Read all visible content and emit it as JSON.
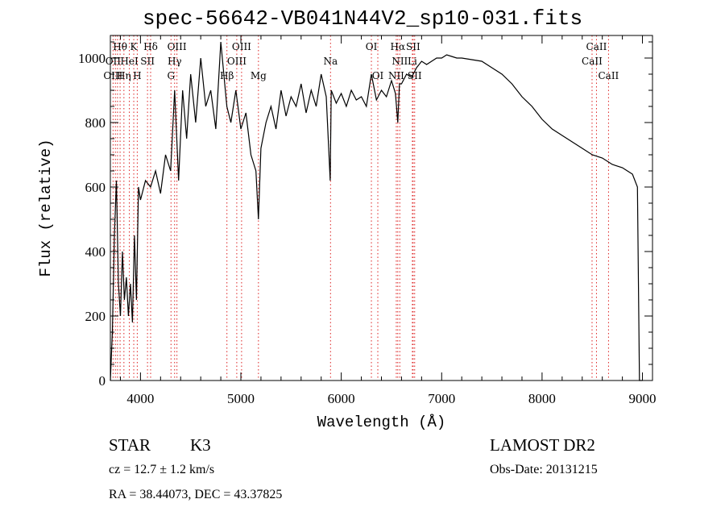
{
  "chart_data": {
    "type": "line",
    "title": "spec-56642-VB041N44V2_sp10-031.fits",
    "xlabel": "Wavelength (Å)",
    "ylabel": "Flux (relative)",
    "xlim": [
      3700,
      9100
    ],
    "ylim": [
      0,
      1070
    ],
    "xticks": [
      4000,
      5000,
      6000,
      7000,
      8000,
      9000
    ],
    "yticks": [
      0,
      200,
      400,
      600,
      800,
      1000
    ],
    "grid": false,
    "series": [
      {
        "x": [
          3700,
          3720,
          3740,
          3760,
          3780,
          3800,
          3820,
          3840,
          3860,
          3880,
          3900,
          3920,
          3940,
          3960,
          3980,
          4000,
          4050,
          4100,
          4150,
          4200,
          4250,
          4300,
          4340,
          4380,
          4420,
          4460,
          4500,
          4550,
          4600,
          4650,
          4700,
          4750,
          4800,
          4860,
          4900,
          4950,
          5000,
          5050,
          5100,
          5150,
          5175,
          5200,
          5250,
          5300,
          5350,
          5400,
          5450,
          5500,
          5550,
          5600,
          5650,
          5700,
          5750,
          5800,
          5850,
          5890,
          5900,
          5950,
          6000,
          6050,
          6100,
          6150,
          6200,
          6250,
          6300,
          6350,
          6400,
          6450,
          6500,
          6540,
          6563,
          6580,
          6600,
          6650,
          6700,
          6750,
          6800,
          6850,
          6900,
          6950,
          7000,
          7050,
          7100,
          7150,
          7200,
          7300,
          7400,
          7500,
          7600,
          7700,
          7800,
          7900,
          8000,
          8100,
          8200,
          8300,
          8400,
          8500,
          8600,
          8700,
          8800,
          8850,
          8900,
          8950,
          8970,
          8990,
          9000
        ],
        "y": [
          0,
          150,
          450,
          620,
          300,
          200,
          400,
          250,
          320,
          200,
          300,
          180,
          450,
          250,
          600,
          560,
          620,
          600,
          650,
          580,
          700,
          650,
          900,
          620,
          900,
          750,
          950,
          800,
          1000,
          850,
          900,
          780,
          1050,
          850,
          800,
          900,
          780,
          830,
          700,
          650,
          500,
          720,
          800,
          850,
          780,
          900,
          820,
          880,
          850,
          920,
          830,
          900,
          850,
          950,
          880,
          620,
          900,
          860,
          890,
          850,
          900,
          870,
          880,
          850,
          950,
          870,
          900,
          880,
          930,
          890,
          800,
          920,
          920,
          950,
          940,
          970,
          990,
          980,
          990,
          1000,
          1000,
          1010,
          1005,
          1000,
          1000,
          995,
          990,
          970,
          950,
          920,
          880,
          850,
          810,
          780,
          760,
          740,
          720,
          700,
          690,
          670,
          660,
          650,
          640,
          600,
          0,
          0,
          0
        ]
      }
    ],
    "annotations": [
      {
        "label": "Hθ",
        "x": 3797
      },
      {
        "label": "K",
        "x": 3933
      },
      {
        "label": "Hδ",
        "x": 4101
      },
      {
        "label": "OII",
        "x": 3727
      },
      {
        "label": "HeI",
        "x": 3889
      },
      {
        "label": "SII",
        "x": 4070
      },
      {
        "label": "OIII",
        "x": 3727
      },
      {
        "label": "Hη",
        "x": 3835
      },
      {
        "label": "H",
        "x": 3968
      },
      {
        "label": "OIII",
        "x": 4363
      },
      {
        "label": "Hγ",
        "x": 4340
      },
      {
        "label": "G",
        "x": 4304
      },
      {
        "label": "OIII",
        "x": 5007
      },
      {
        "label": "OIII",
        "x": 4959
      },
      {
        "label": "Hβ",
        "x": 4861
      },
      {
        "label": "Mg",
        "x": 5175
      },
      {
        "label": "Na",
        "x": 5893
      },
      {
        "label": "OI",
        "x": 6300
      },
      {
        "label": "OI",
        "x": 6364
      },
      {
        "label": "Hα",
        "x": 6563
      },
      {
        "label": "SII",
        "x": 6716
      },
      {
        "label": "NII",
        "x": 6583
      },
      {
        "label": "Li",
        "x": 6708
      },
      {
        "label": "NII",
        "x": 6548
      },
      {
        "label": "SII",
        "x": 6731
      },
      {
        "label": "CaII",
        "x": 8542
      },
      {
        "label": "CaII",
        "x": 8498
      },
      {
        "label": "CaII",
        "x": 8662
      }
    ],
    "marker_lines": [
      3727,
      3750,
      3771,
      3797,
      3835,
      3889,
      3933,
      3968,
      4070,
      4101,
      4304,
      4340,
      4363,
      4861,
      4959,
      5007,
      5175,
      5893,
      6300,
      6364,
      6548,
      6563,
      6583,
      6708,
      6716,
      6731,
      8498,
      8542,
      8662
    ]
  },
  "info": {
    "class_label": "STAR",
    "subclass": "K3",
    "cz": "cz = 12.7 ± 1.2 km/s",
    "coords": "RA =  38.44073, DEC =  43.37825",
    "survey": "LAMOST DR2",
    "obs_date": "Obs-Date: 20131215"
  }
}
